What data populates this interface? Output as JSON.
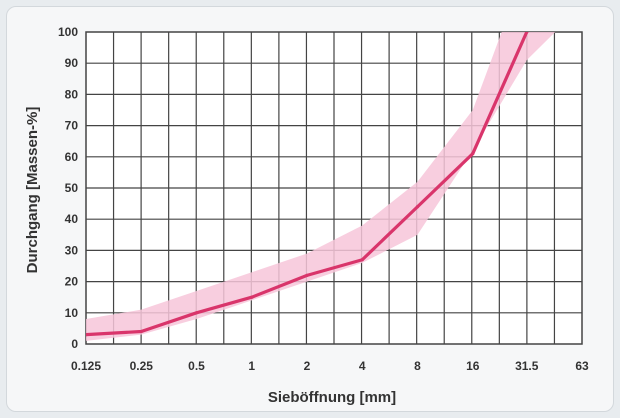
{
  "chart_data": {
    "type": "line",
    "title": "",
    "xlabel": "Sieböffnung [mm]",
    "ylabel": "Durchgang [Massen-%]",
    "x_categories": [
      "0.125",
      "0.25",
      "0.5",
      "1",
      "2",
      "4",
      "8",
      "16",
      "31.5",
      "63"
    ],
    "x_scale": "log",
    "ylim": [
      0,
      100
    ],
    "y_ticks": [
      0,
      10,
      20,
      30,
      40,
      50,
      60,
      70,
      80,
      90,
      100
    ],
    "grid": true,
    "colors": {
      "line": "#d9356b",
      "band": "#f7c6d9",
      "grid": "#444444"
    },
    "series": [
      {
        "x": [
          0.125,
          0.25,
          0.5,
          1,
          2,
          4,
          8,
          16,
          31.5
        ],
        "y": [
          3,
          4,
          10,
          15,
          22,
          27,
          44,
          61,
          100
        ]
      }
    ],
    "band": {
      "lower": {
        "x": [
          0.125,
          0.25,
          0.5,
          1,
          2,
          4,
          8,
          16,
          31.5,
          45
        ],
        "y": [
          1,
          3,
          8,
          14,
          20,
          26,
          35,
          62,
          91,
          100
        ]
      },
      "upper": {
        "x": [
          0.125,
          0.25,
          0.5,
          1,
          2,
          4,
          8,
          16,
          23,
          31.5,
          45
        ],
        "y": [
          8,
          11,
          17,
          23,
          29,
          38,
          52,
          75,
          100,
          100,
          100
        ]
      }
    }
  }
}
